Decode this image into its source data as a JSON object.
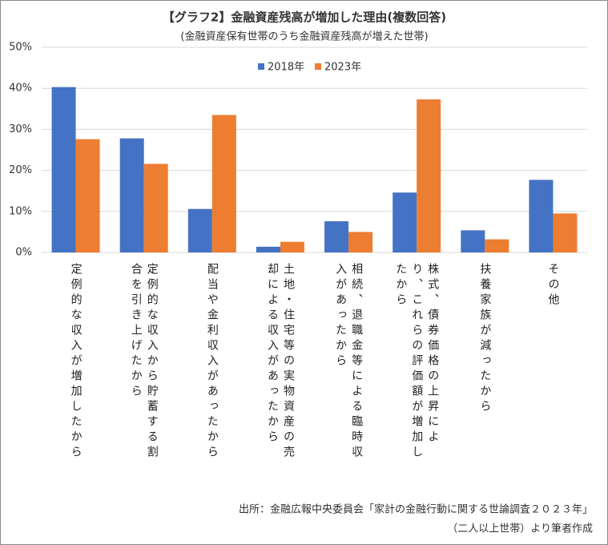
{
  "chart_data": {
    "type": "bar",
    "title": "【グラフ2】金融資産残高が増加した理由(複数回答)",
    "subtitle": "(金融資産保有世帯のうち金融資産残高が増えた世帯)",
    "categories": [
      "定例的な収入が増加したから",
      "定例的な収入から貯蓄する割合を引き上げたから",
      "配当や金利収入があったから",
      "土地・住宅等の実物資産の売却による収入があったから",
      "相続、退職金等による臨時収入があったから",
      "株式、債券価格の上昇により、これらの評価額が増加したから",
      "扶養家族が減ったから",
      "その他"
    ],
    "series": [
      {
        "name": "2018年",
        "color": "#4472c4",
        "values": [
          40.3,
          27.8,
          10.6,
          1.4,
          7.6,
          14.6,
          5.4,
          17.7
        ]
      },
      {
        "name": "2023年",
        "color": "#ed7d31",
        "values": [
          27.6,
          21.6,
          33.5,
          2.6,
          5.0,
          37.3,
          3.2,
          9.5
        ]
      }
    ],
    "ylim": [
      0,
      50
    ],
    "yticks": [
      {
        "value": 0,
        "label": "0%"
      },
      {
        "value": 10,
        "label": "10%"
      },
      {
        "value": 20,
        "label": "20%"
      },
      {
        "value": 30,
        "label": "30%"
      },
      {
        "value": 40,
        "label": "40%"
      },
      {
        "value": 50,
        "label": "50%"
      }
    ],
    "grid": true,
    "legend": "top",
    "source": [
      "出所：金融広報中央委員会「家計の金融行動に関する世論調査２０２３年」",
      "（二人以上世帯）より筆者作成"
    ]
  }
}
